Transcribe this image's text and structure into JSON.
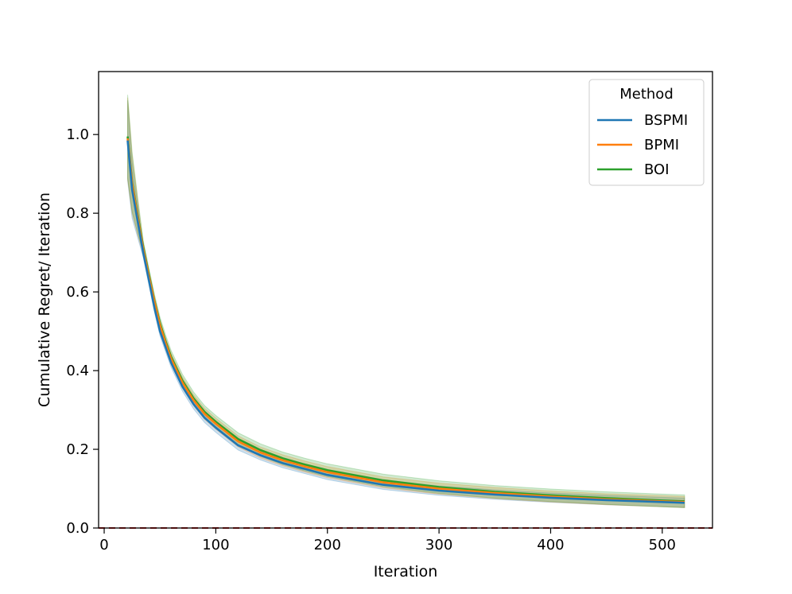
{
  "chart_data": {
    "type": "line",
    "title": "",
    "xlabel": "Iteration",
    "ylabel": "Cumulative Regret/ Iteration",
    "xlim": [
      -5,
      545
    ],
    "ylim": [
      0.0,
      1.16
    ],
    "x_ticks": [
      0,
      100,
      200,
      300,
      400,
      500
    ],
    "y_ticks": [
      0.0,
      0.2,
      0.4,
      0.6,
      0.8,
      1.0
    ],
    "x_tick_labels": [
      "0",
      "100",
      "200",
      "300",
      "400",
      "500"
    ],
    "y_tick_labels": [
      "0.0",
      "0.2",
      "0.4",
      "0.6",
      "0.8",
      "1.0"
    ],
    "grid": false,
    "legend": {
      "title": "Method",
      "placement": "upper-right"
    },
    "series": [
      {
        "name": "BSPMI",
        "color": "#1f77b4",
        "x": [
          21,
          25,
          30,
          35,
          40,
          45,
          50,
          55,
          60,
          70,
          80,
          90,
          100,
          120,
          140,
          160,
          180,
          200,
          250,
          300,
          350,
          400,
          450,
          500,
          520
        ],
        "y": [
          0.985,
          0.86,
          0.78,
          0.7,
          0.63,
          0.56,
          0.5,
          0.46,
          0.42,
          0.36,
          0.315,
          0.28,
          0.255,
          0.21,
          0.185,
          0.165,
          0.15,
          0.135,
          0.11,
          0.095,
          0.085,
          0.077,
          0.071,
          0.066,
          0.064
        ],
        "band": 0.012
      },
      {
        "name": "BPMI",
        "color": "#ff7f0e",
        "x": [
          21,
          25,
          30,
          35,
          40,
          45,
          50,
          55,
          60,
          70,
          80,
          90,
          100,
          120,
          140,
          160,
          180,
          200,
          250,
          300,
          350,
          400,
          450,
          500,
          520
        ],
        "y": [
          0.99,
          0.875,
          0.79,
          0.71,
          0.64,
          0.575,
          0.515,
          0.47,
          0.43,
          0.37,
          0.325,
          0.29,
          0.265,
          0.22,
          0.192,
          0.172,
          0.156,
          0.142,
          0.116,
          0.1,
          0.089,
          0.08,
          0.073,
          0.068,
          0.066
        ],
        "band": 0.014
      },
      {
        "name": "BOI",
        "color": "#2ca02c",
        "x": [
          21,
          25,
          30,
          35,
          40,
          45,
          50,
          55,
          60,
          70,
          80,
          90,
          100,
          120,
          140,
          160,
          180,
          200,
          250,
          300,
          350,
          400,
          450,
          500,
          520
        ],
        "y": [
          0.995,
          0.88,
          0.795,
          0.715,
          0.645,
          0.578,
          0.52,
          0.475,
          0.435,
          0.375,
          0.33,
          0.295,
          0.27,
          0.226,
          0.198,
          0.177,
          0.161,
          0.147,
          0.121,
          0.104,
          0.092,
          0.083,
          0.076,
          0.07,
          0.068
        ],
        "band": 0.016
      }
    ],
    "reference_line": {
      "y": 0.0,
      "color": "#d62728",
      "style": "dashed"
    }
  }
}
